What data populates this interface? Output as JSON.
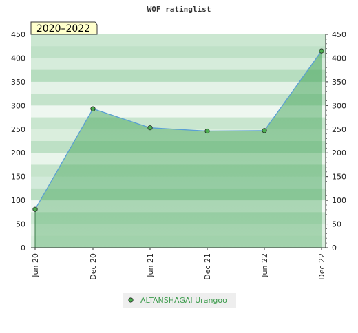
{
  "chart_data": {
    "type": "area",
    "title": "WOF ratinglist",
    "period_badge": "2020–2022",
    "x": [
      "Jun 20",
      "Dec 20",
      "Jun 21",
      "Dec 21",
      "Jun 22",
      "Dec 22"
    ],
    "y_ticks": [
      0,
      50,
      100,
      150,
      200,
      250,
      300,
      350,
      400,
      450
    ],
    "ylim": [
      0,
      450
    ],
    "series": [
      {
        "name": "ALTANSHAGAI Urangoo",
        "points": [
          {
            "x": "Jun 20",
            "y": 81
          },
          {
            "x": "Dec 20",
            "y": 293
          },
          {
            "x": "Jun 21",
            "y": 253
          },
          {
            "x": "Dec 21",
            "y": 246
          },
          {
            "x": "Jun 22",
            "y": 247
          },
          {
            "x": "Dec 22",
            "y": 415
          }
        ]
      }
    ],
    "colors": {
      "line": "#5a9fd4",
      "area": "#3fa255",
      "marker": "#4caf50",
      "band_dark": "#c2e4ca",
      "band_light": "#eef7f0",
      "badge_bg": "#ffffcc"
    },
    "legend": "bottom-center",
    "grid": true
  }
}
